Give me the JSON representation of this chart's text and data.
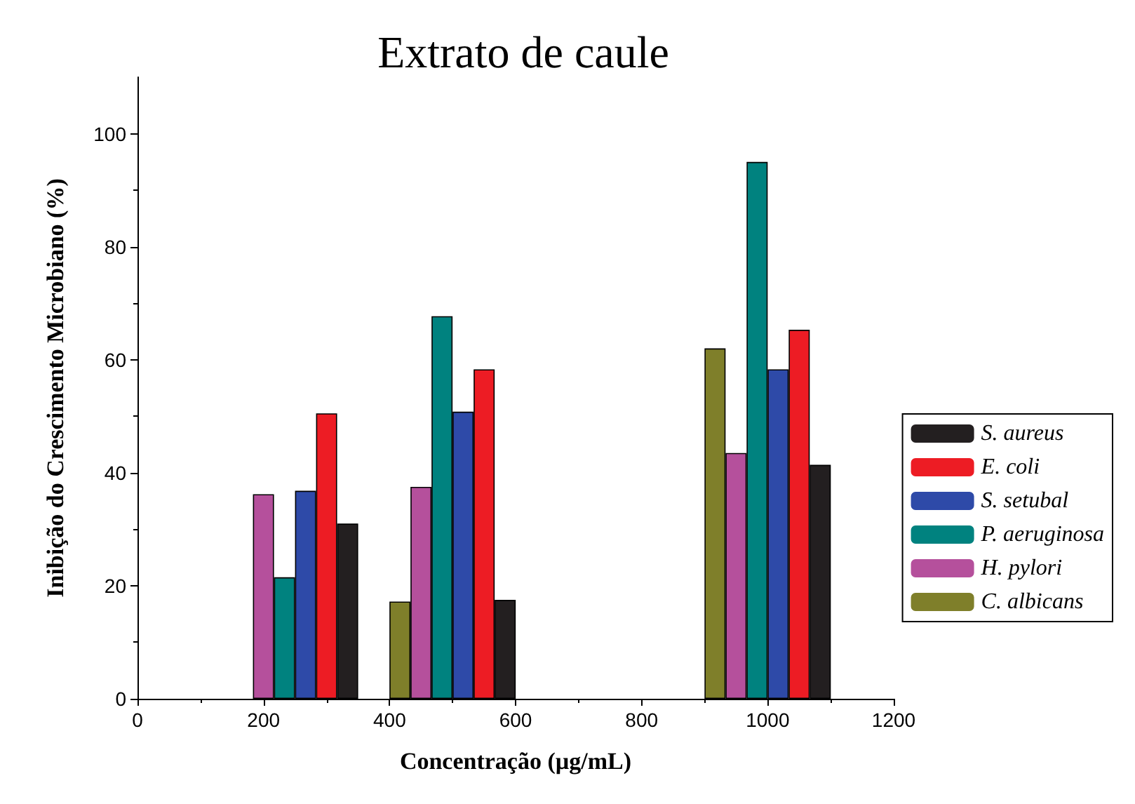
{
  "chart_data": {
    "type": "bar",
    "title": "Extrato de caule",
    "xlabel": "Concentração (µg/mL)",
    "ylabel": "Inibição do Crescimento Microbiano (%)",
    "x": [
      250,
      500,
      1000
    ],
    "series": [
      {
        "name": "S. aureus",
        "color": "#231f20",
        "values": [
          31,
          17.5,
          41.4
        ]
      },
      {
        "name": "E. coli",
        "color": "#ed1c24",
        "values": [
          50.5,
          58.3,
          65.3
        ]
      },
      {
        "name": "S. setubal",
        "color": "#2e4aa8",
        "values": [
          36.8,
          50.8,
          58.3
        ]
      },
      {
        "name": "P. aeruginosa",
        "color": "#00827f",
        "values": [
          21.5,
          67.7,
          95
        ]
      },
      {
        "name": "H. pylori",
        "color": "#b5509c",
        "values": [
          36.2,
          37.5,
          43.5
        ]
      },
      {
        "name": "C. albicans",
        "color": "#7f7f2a",
        "values": [
          null,
          17.2,
          62
        ]
      }
    ],
    "xlim": [
      0,
      1200
    ],
    "xticks": [
      0,
      200,
      400,
      600,
      800,
      1000,
      1200
    ],
    "ylim": [
      0,
      110
    ],
    "yticks": [
      0,
      20,
      40,
      60,
      80,
      100
    ],
    "grid": false,
    "legend": "right"
  }
}
